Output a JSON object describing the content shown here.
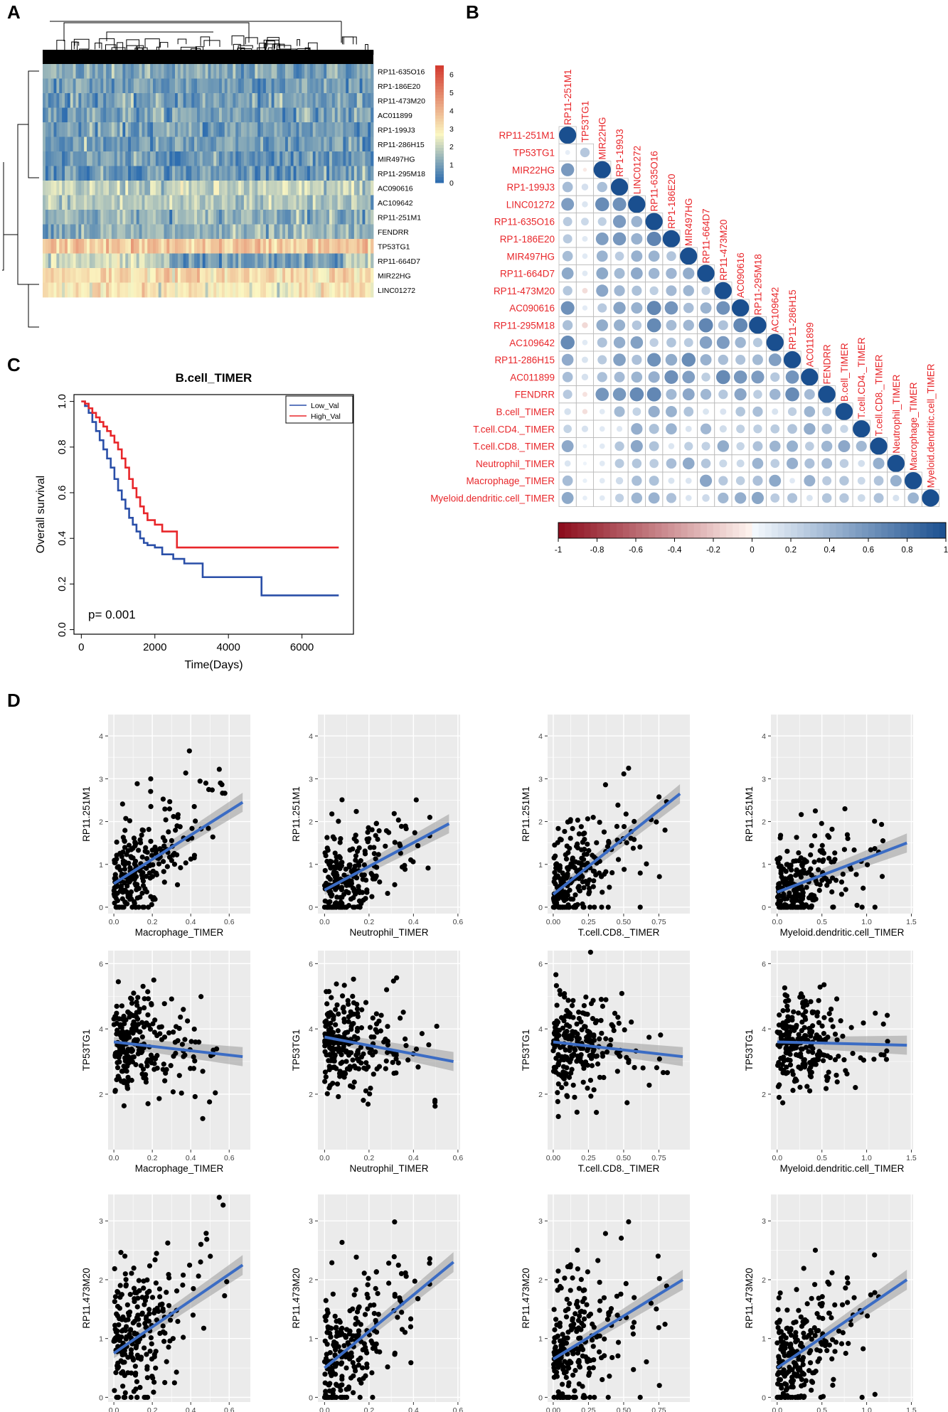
{
  "panels": {
    "A": "A",
    "B": "B",
    "C": "C",
    "D": "D"
  },
  "colors": {
    "heat_low": "#2f6eb0",
    "heat_mid": "#fbf7c2",
    "heat_high": "#d2352b",
    "corr_pos": "#1a4f8f",
    "corr_neg": "#8b0a1a",
    "low_val": "#2a4fa8",
    "high_val": "#e8262a",
    "fit_line": "#3b6cc4",
    "plot_bg": "#ebebeb"
  },
  "chart_data": [
    {
      "id": "A",
      "type": "heatmap",
      "title": "",
      "rows": [
        "RP11-635O16",
        "RP1-186E20",
        "RP11-473M20",
        "AC011899",
        "RP1-199J3",
        "RP11-286H15",
        "MIR497HG",
        "RP11-295M18",
        "AC090616",
        "AC109642",
        "RP11-251M1",
        "FENDRR",
        "TP53TG1",
        "RP11-664D7",
        "MIR22HG",
        "LINC01272"
      ],
      "row_means": [
        1.0,
        0.9,
        0.9,
        1.0,
        0.9,
        0.8,
        0.8,
        0.8,
        1.8,
        1.7,
        1.3,
        1.2,
        3.5,
        2.0,
        3.2,
        2.8
      ],
      "colorbar_ticks": [
        "0",
        "1",
        "2",
        "3",
        "4",
        "5",
        "6"
      ],
      "colorbar_range": [
        0,
        6.5
      ]
    },
    {
      "id": "B",
      "type": "heatmap",
      "subtype": "correlation-lower-triangle",
      "labels": [
        "RP11-251M1",
        "TP53TG1",
        "MIR22HG",
        "RP1-199J3",
        "LINC01272",
        "RP11-635O16",
        "RP1-186E20",
        "MIR497HG",
        "RP11-664D7",
        "RP11-473M20",
        "AC090616",
        "RP11-295M18",
        "AC109642",
        "RP11-286H15",
        "AC011899",
        "FENDRR",
        "B.cell_TIMER",
        "T.cell.CD4._TIMER",
        "T.cell.CD8._TIMER",
        "Neutrophil_TIMER",
        "Macrophage_TIMER",
        "Myeloid.dendritic.cell_TIMER"
      ],
      "scale_ticks": [
        "-1",
        "-0.8",
        "-0.6",
        "-0.4",
        "-0.2",
        "0",
        "0.2",
        "0.4",
        "0.6",
        "0.8",
        "1"
      ],
      "scale_range": [
        -1,
        1
      ]
    },
    {
      "id": "C",
      "type": "line",
      "subtype": "kaplan-meier",
      "title": "B.cell_TIMER",
      "xlabel": "Time(Days)",
      "ylabel": "Overall survival",
      "xlim": [
        -200,
        7400
      ],
      "ylim": [
        -0.02,
        1.03
      ],
      "xticks": [
        0,
        2000,
        4000,
        6000
      ],
      "xtick_labels": [
        "0",
        "2000",
        "4000",
        "6000"
      ],
      "yticks": [
        0.0,
        0.2,
        0.4,
        0.6,
        0.8,
        1.0
      ],
      "ytick_labels": [
        "0.0",
        "0.2",
        "0.4",
        "0.6",
        "0.8",
        "1.0"
      ],
      "pvalue_label": "p= 0.001",
      "legend": [
        "Low_Val",
        "High_Val"
      ],
      "series": [
        {
          "name": "Low_Val",
          "x": [
            0,
            100,
            200,
            300,
            400,
            500,
            600,
            700,
            800,
            900,
            1000,
            1100,
            1200,
            1300,
            1400,
            1500,
            1600,
            1700,
            1800,
            2000,
            2200,
            2500,
            2800,
            3300,
            4900,
            7000
          ],
          "y": [
            1.0,
            0.98,
            0.95,
            0.91,
            0.87,
            0.83,
            0.79,
            0.75,
            0.71,
            0.66,
            0.61,
            0.57,
            0.53,
            0.49,
            0.46,
            0.43,
            0.4,
            0.38,
            0.37,
            0.36,
            0.33,
            0.31,
            0.29,
            0.23,
            0.15,
            0.15
          ]
        },
        {
          "name": "High_Val",
          "x": [
            0,
            100,
            200,
            300,
            400,
            500,
            600,
            700,
            800,
            900,
            1000,
            1100,
            1200,
            1300,
            1400,
            1500,
            1600,
            1700,
            1800,
            2000,
            2200,
            2600,
            7000
          ],
          "y": [
            1.0,
            0.99,
            0.97,
            0.95,
            0.93,
            0.91,
            0.89,
            0.87,
            0.85,
            0.82,
            0.79,
            0.75,
            0.71,
            0.66,
            0.62,
            0.58,
            0.54,
            0.51,
            0.48,
            0.46,
            0.43,
            0.36,
            0.36
          ]
        }
      ]
    },
    {
      "id": "D",
      "type": "scatter",
      "grid": true,
      "rows": [
        {
          "ylabel": "RP11.251M1",
          "yticks": [
            0,
            1,
            2,
            3,
            4
          ],
          "ylim": [
            -0.15,
            4.5
          ]
        },
        {
          "ylabel": "TP53TG1",
          "yticks": [
            2,
            4,
            6
          ],
          "ylim": [
            0.3,
            6.4
          ]
        },
        {
          "ylabel": "RP11.473M20",
          "yticks": [
            0,
            1,
            2,
            3
          ],
          "ylim": [
            -0.08,
            3.45
          ]
        }
      ],
      "columns": [
        {
          "xlabel": "Macrophage_TIMER",
          "xticks": [
            0.0,
            0.2,
            0.4,
            0.6
          ],
          "xtick_labels": [
            "0.0",
            "0.2",
            "0.4",
            "0.6"
          ],
          "xlim": [
            -0.03,
            0.71
          ]
        },
        {
          "xlabel": "Neutrophil_TIMER",
          "xticks": [
            0.0,
            0.2,
            0.4,
            0.6
          ],
          "xtick_labels": [
            "0.0",
            "0.2",
            "0.4",
            "0.6"
          ],
          "xlim": [
            -0.03,
            0.61
          ]
        },
        {
          "xlabel": "T.cell.CD8._TIMER",
          "xticks": [
            0.0,
            0.25,
            0.5,
            0.75
          ],
          "xtick_labels": [
            "0.00",
            "0.25",
            "0.50",
            "0.75"
          ],
          "xlim": [
            -0.04,
            0.97
          ]
        },
        {
          "xlabel": "Myeloid.dendritic.cell_TIMER",
          "xticks": [
            0.0,
            0.5,
            1.0,
            1.5
          ],
          "xtick_labels": [
            "0.0",
            "0.5",
            "1.0",
            "1.5"
          ],
          "xlim": [
            -0.07,
            1.52
          ]
        }
      ],
      "fits": [
        [
          {
            "x0": 0.0,
            "y0": 0.55,
            "x1": 0.67,
            "y1": 2.45
          },
          {
            "x0": 0.0,
            "y0": 0.4,
            "x1": 0.56,
            "y1": 1.95
          },
          {
            "x0": 0.0,
            "y0": 0.3,
            "x1": 0.9,
            "y1": 2.65
          },
          {
            "x0": 0.0,
            "y0": 0.35,
            "x1": 1.45,
            "y1": 1.5
          }
        ],
        [
          {
            "x0": 0.0,
            "y0": 3.6,
            "x1": 0.67,
            "y1": 3.15
          },
          {
            "x0": 0.0,
            "y0": 3.75,
            "x1": 0.58,
            "y1": 3.0
          },
          {
            "x0": 0.0,
            "y0": 3.6,
            "x1": 0.92,
            "y1": 3.15
          },
          {
            "x0": 0.0,
            "y0": 3.6,
            "x1": 1.45,
            "y1": 3.5
          }
        ],
        [
          {
            "x0": 0.0,
            "y0": 0.75,
            "x1": 0.67,
            "y1": 2.25
          },
          {
            "x0": 0.0,
            "y0": 0.5,
            "x1": 0.58,
            "y1": 2.3
          },
          {
            "x0": 0.0,
            "y0": 0.65,
            "x1": 0.92,
            "y1": 2.0
          },
          {
            "x0": 0.0,
            "y0": 0.5,
            "x1": 1.45,
            "y1": 2.0
          }
        ]
      ]
    }
  ]
}
